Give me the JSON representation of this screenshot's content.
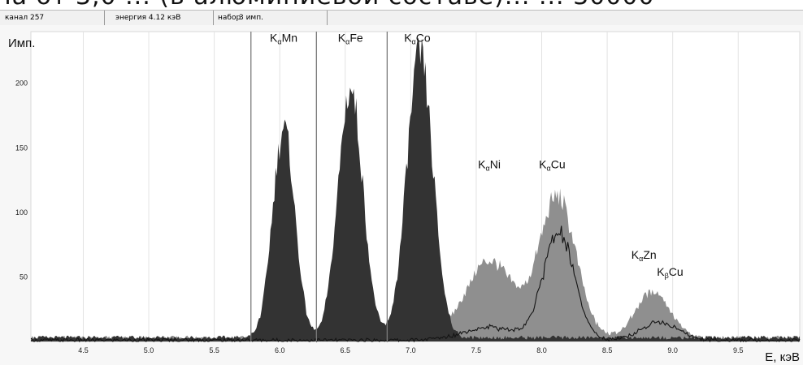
{
  "cropped_caption": "на от 3,0 ... (в алюминиевой составе)... ... 30000",
  "status_bar": {
    "channel": "канал 257",
    "energy": "энергия 4.12 кэВ",
    "acquisition_label": "набор",
    "acquisition_value": "3 имп."
  },
  "colors": {
    "dark_spectrum": "#333333",
    "light_spectrum": "#8f8f8f",
    "outline": "#141414",
    "marker_line": "#7a7a7a",
    "background": "#f7f7f7"
  },
  "chart_data": {
    "type": "area",
    "ylabel": "Имп.",
    "xlabel": "E, кэВ",
    "xlim": [
      4.1,
      9.97
    ],
    "ylim": [
      0,
      240
    ],
    "x_ticks": [
      4.5,
      5.0,
      5.5,
      6.0,
      6.5,
      7.0,
      7.5,
      8.0,
      8.5,
      9.0,
      9.5
    ],
    "x_tick_labels": [
      "4.5",
      "5.0",
      "5.5",
      "6.0",
      "6.5",
      "7.0",
      "7.5",
      "8.0",
      "8.5",
      "9.0",
      "9.5"
    ],
    "y_ticks": [
      50,
      100,
      150,
      200
    ],
    "y_tick_labels": [
      "50",
      "100",
      "150",
      "200"
    ],
    "grid": "vertical",
    "region_markers_kev": [
      5.78,
      6.28,
      6.82
    ],
    "series": [
      {
        "name": "dark",
        "peaks": [
          {
            "x": 6.03,
            "y": 162,
            "width": 0.085
          },
          {
            "x": 6.54,
            "y": 192,
            "width": 0.095
          },
          {
            "x": 7.07,
            "y": 218,
            "width": 0.1
          }
        ],
        "baseline": 3
      },
      {
        "name": "light",
        "peaks": [
          {
            "x": 7.6,
            "y": 60,
            "width": 0.18
          },
          {
            "x": 8.12,
            "y": 108,
            "width": 0.14
          },
          {
            "x": 8.85,
            "y": 36,
            "width": 0.13
          }
        ],
        "baseline": 3
      },
      {
        "name": "outline",
        "peaks": [
          {
            "x": 7.6,
            "y": 10,
            "width": 0.2
          },
          {
            "x": 8.13,
            "y": 82,
            "width": 0.12
          },
          {
            "x": 8.9,
            "y": 14,
            "width": 0.14
          }
        ],
        "baseline": 1
      }
    ],
    "peak_labels": [
      {
        "main": "K",
        "sub": "α",
        "element": "Mn",
        "x": 6.03,
        "y": 232
      },
      {
        "main": "K",
        "sub": "α",
        "element": "Fe",
        "x": 6.54,
        "y": 232
      },
      {
        "main": "K",
        "sub": "α",
        "element": "Co",
        "x": 7.05,
        "y": 232
      },
      {
        "main": "K",
        "sub": "α",
        "element": "Ni",
        "x": 7.6,
        "y": 134
      },
      {
        "main": "K",
        "sub": "α",
        "element": "Cu",
        "x": 8.08,
        "y": 134
      },
      {
        "main": "K",
        "sub": "α",
        "element": "Zn",
        "x": 8.78,
        "y": 64
      },
      {
        "main": "K",
        "sub": "β",
        "element": "Cu",
        "x": 8.98,
        "y": 51
      }
    ]
  }
}
